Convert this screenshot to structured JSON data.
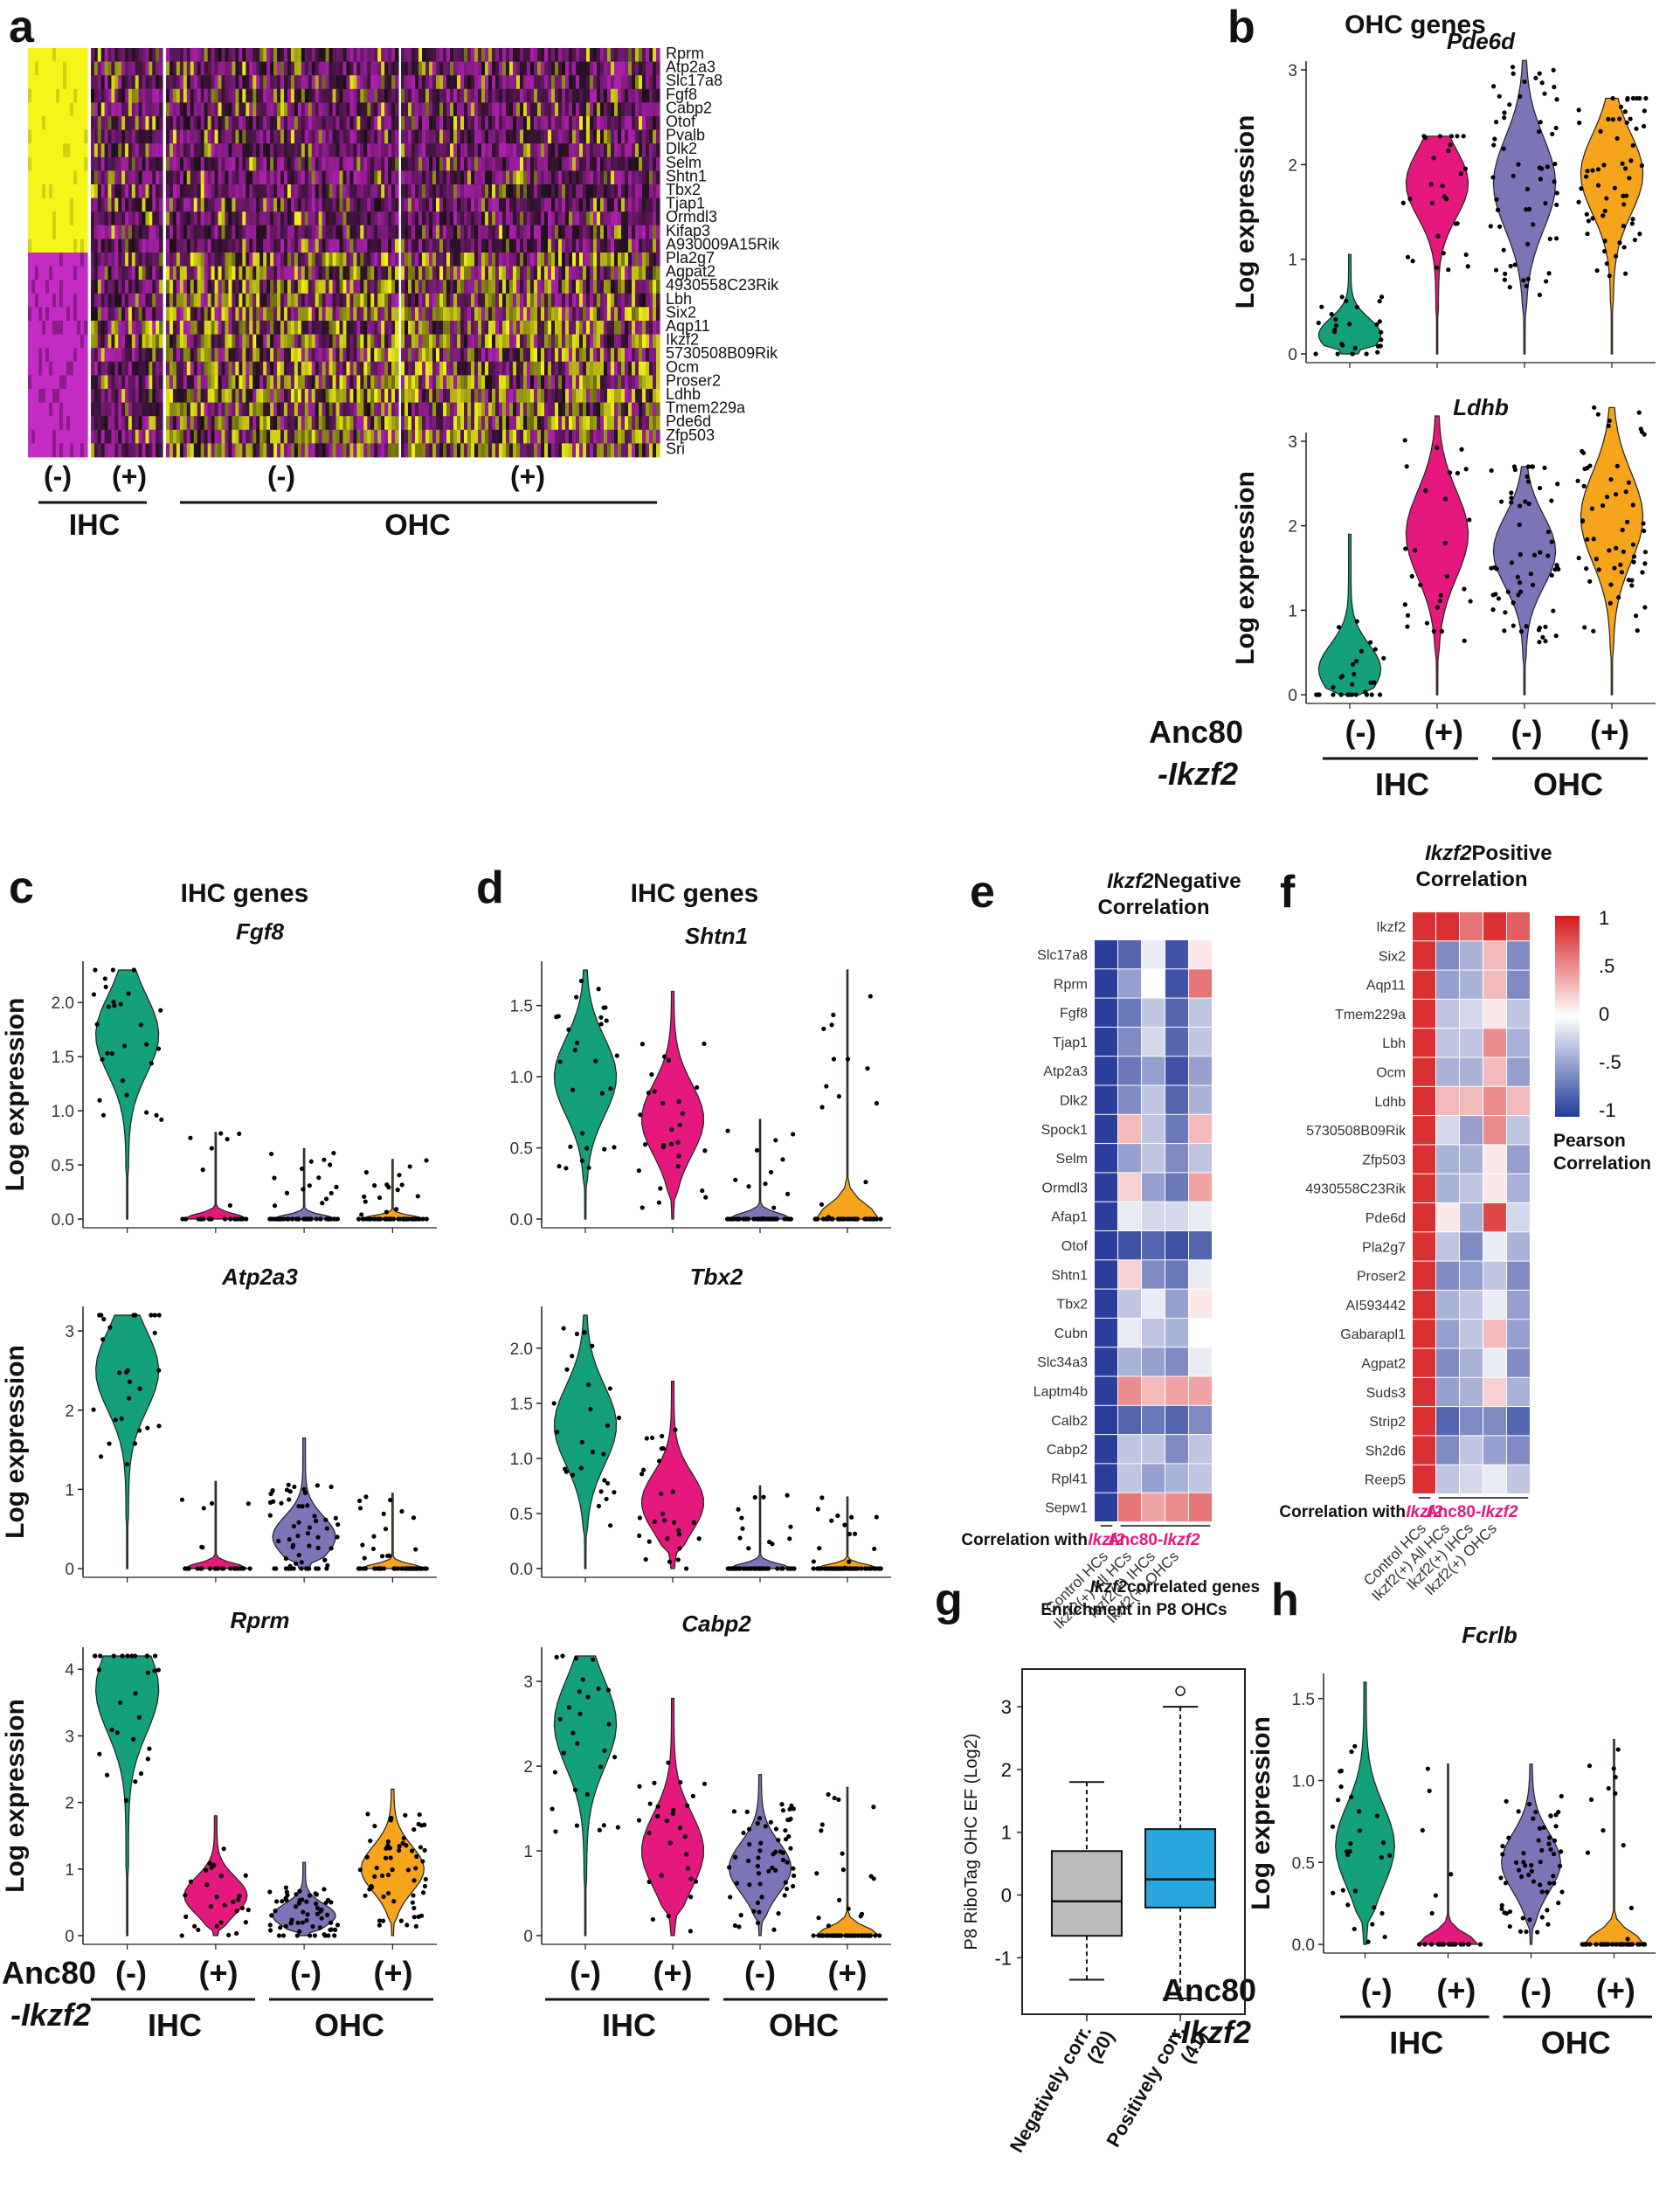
{
  "panel_letters": {
    "a": "a",
    "b": "b",
    "c": "c",
    "d": "d",
    "e": "e",
    "f": "f",
    "g": "g",
    "h": "h"
  },
  "colors": {
    "ihc_ctrl": "#14a07a",
    "ihc_ikzf2": "#e5197d",
    "ohc_ctrl": "#7b74b6",
    "ohc_ikzf2": "#f5a41c",
    "heat_low": "#c41fc4",
    "heat_high": "#f2f216",
    "box_neg": "#bbbbbb",
    "box_pos": "#2aa6df"
  },
  "common": {
    "ylabel": "Log expression",
    "anc80_line1": "Anc80",
    "anc80_line2": "-Ikzf2",
    "neg": "(-)",
    "pos": "(+)",
    "ihc": "IHC",
    "ohc": "OHC"
  },
  "heatmap": {
    "genes": [
      "Rprm",
      "Atp2a3",
      "Slc17a8",
      "Fgf8",
      "Cabp2",
      "Otof",
      "Pvalb",
      "Dlk2",
      "Selm",
      "Shtn1",
      "Tbx2",
      "Tjap1",
      "Ormdl3",
      "Kifap3",
      "A930009A15Rik",
      "Pla2g7",
      "Agpat2",
      "4930558C23Rik",
      "Lbh",
      "Six2",
      "Aqp11",
      "Ikzf2",
      "5730508B09Rik",
      "Ocm",
      "Proser2",
      "Ldhb",
      "Tmem229a",
      "Pde6d",
      "Zfp503",
      "Sri"
    ],
    "groups": [
      "(-)",
      "(+)",
      "(-)",
      "(+)"
    ],
    "group_labels": {
      "ihc": "IHC",
      "ohc": "OHC"
    }
  },
  "panel_b": {
    "title": "OHC genes",
    "genes": [
      {
        "name": "Pde6d",
        "ymax": 3,
        "ticks": [
          0,
          1,
          2,
          3
        ]
      },
      {
        "name": "Ldhb",
        "ymax": 3,
        "ticks": [
          0,
          1,
          2,
          3
        ]
      }
    ]
  },
  "panel_c": {
    "title": "IHC genes",
    "genes": [
      {
        "name": "Fgf8",
        "ticks": [
          "0.0",
          "0.5",
          "1.0",
          "1.5",
          "2.0"
        ]
      },
      {
        "name": "Atp2a3",
        "ticks": [
          "0",
          "1",
          "2",
          "3"
        ]
      },
      {
        "name": "Rprm",
        "ticks": [
          "0",
          "1",
          "2",
          "3",
          "4"
        ]
      }
    ]
  },
  "panel_d": {
    "title": "IHC genes",
    "genes": [
      {
        "name": "Shtn1",
        "ticks": [
          "0.0",
          "0.5",
          "1.0",
          "1.5"
        ]
      },
      {
        "name": "Tbx2",
        "ticks": [
          "0.0",
          "0.5",
          "1.0",
          "1.5",
          "2.0"
        ]
      },
      {
        "name": "Cabp2",
        "ticks": [
          "0",
          "1",
          "2",
          "3"
        ]
      }
    ]
  },
  "panel_e": {
    "title_italic": "Ikzf2",
    "title_rest": " Negative",
    "title_line2": "Correlation",
    "genes": [
      "Slc17a8",
      "Rprm",
      "Fgf8",
      "Tjap1",
      "Atp2a3",
      "Dlk2",
      "Spock1",
      "Selm",
      "Ormdl3",
      "Afap1",
      "Otof",
      "Shtn1",
      "Tbx2",
      "Cubn",
      "Slc34a3",
      "Laptm4b",
      "Calb2",
      "Cabp2",
      "Rpl41",
      "Sepw1"
    ],
    "values": [
      [
        -1,
        -0.8,
        -0.1,
        -0.9,
        0.1
      ],
      [
        -1,
        -0.5,
        0.0,
        -0.9,
        0.6
      ],
      [
        -1,
        -0.7,
        -0.3,
        -0.8,
        -0.3
      ],
      [
        -1,
        -0.6,
        -0.2,
        -0.8,
        -0.3
      ],
      [
        -1,
        -0.7,
        -0.5,
        -0.9,
        -0.5
      ],
      [
        -1,
        -0.6,
        -0.3,
        -0.8,
        -0.4
      ],
      [
        -1,
        0.3,
        -0.3,
        -0.7,
        0.3
      ],
      [
        -1,
        -0.5,
        -0.3,
        -0.6,
        -0.3
      ],
      [
        -1,
        0.2,
        -0.5,
        -0.7,
        0.4
      ],
      [
        -1,
        -0.1,
        -0.2,
        -0.2,
        -0.1
      ],
      [
        -1,
        -0.9,
        -0.8,
        -0.9,
        -0.8
      ],
      [
        -1,
        0.2,
        -0.6,
        -0.7,
        -0.1
      ],
      [
        -1,
        -0.3,
        -0.1,
        -0.5,
        0.1
      ],
      [
        -1,
        -0.1,
        -0.3,
        -0.4,
        0.0
      ],
      [
        -1,
        -0.4,
        -0.5,
        -0.6,
        -0.1
      ],
      [
        -1,
        0.5,
        0.3,
        0.4,
        0.4
      ],
      [
        -1,
        -0.8,
        -0.7,
        -0.8,
        -0.6
      ],
      [
        -1,
        -0.3,
        -0.3,
        -0.6,
        -0.3
      ],
      [
        -1,
        -0.3,
        -0.5,
        -0.4,
        -0.3
      ],
      [
        -1,
        0.6,
        0.4,
        0.5,
        0.6
      ]
    ],
    "xlabels": [
      "Control HCs",
      "Ikzf2(+) All HCs",
      "Ikzf2(+) IHCs",
      "Ikzf2(+) OHCs"
    ],
    "corr_prefix": "Correlation with",
    "corr_italic": "Ikzf2",
    "corr_suffix": "Anc80-",
    "corr_suffix_italic": "Ikzf2"
  },
  "panel_f": {
    "title_italic": "Ikzf2",
    "title_rest": " Positive",
    "title_line2": "Correlation",
    "genes": [
      "Ikzf2",
      "Six2",
      "Aqp11",
      "Tmem229a",
      "Lbh",
      "Ocm",
      "Ldhb",
      "5730508B09Rik",
      "Zfp503",
      "4930558C23Rik",
      "Pde6d",
      "Pla2g7",
      "Proser2",
      "AI593442",
      "Gabarapl1",
      "Agpat2",
      "Suds3",
      "Strip2",
      "Sh2d6",
      "Reep5"
    ],
    "values": [
      [
        0.9,
        0.9,
        0.6,
        0.9,
        0.7
      ],
      [
        0.9,
        -0.6,
        -0.4,
        0.3,
        -0.6
      ],
      [
        0.9,
        -0.5,
        -0.4,
        0.3,
        -0.6
      ],
      [
        0.9,
        -0.3,
        -0.2,
        0.1,
        -0.3
      ],
      [
        0.9,
        -0.3,
        -0.3,
        0.5,
        -0.4
      ],
      [
        0.9,
        -0.4,
        -0.4,
        0.3,
        -0.5
      ],
      [
        0.9,
        0.3,
        0.3,
        0.5,
        0.3
      ],
      [
        0.9,
        -0.2,
        -0.5,
        0.5,
        -0.3
      ],
      [
        0.9,
        -0.4,
        -0.4,
        0.1,
        -0.5
      ],
      [
        0.9,
        -0.4,
        -0.3,
        0.1,
        -0.4
      ],
      [
        0.9,
        0.1,
        -0.4,
        0.8,
        -0.2
      ],
      [
        0.9,
        -0.3,
        -0.6,
        -0.1,
        -0.4
      ],
      [
        0.9,
        -0.6,
        -0.5,
        -0.3,
        -0.6
      ],
      [
        0.9,
        -0.4,
        -0.3,
        -0.1,
        -0.5
      ],
      [
        0.9,
        -0.5,
        -0.3,
        0.3,
        -0.5
      ],
      [
        0.9,
        -0.6,
        -0.4,
        -0.1,
        -0.6
      ],
      [
        0.9,
        -0.5,
        -0.4,
        0.2,
        -0.4
      ],
      [
        0.9,
        -0.8,
        -0.6,
        -0.6,
        -0.8
      ],
      [
        0.9,
        -0.6,
        -0.3,
        -0.5,
        -0.6
      ],
      [
        0.9,
        -0.3,
        -0.2,
        -0.1,
        -0.3
      ]
    ],
    "legend_ticks": [
      "1",
      ".5",
      "0",
      "-.5",
      "-1"
    ],
    "legend_title1": "Pearson",
    "legend_title2": "Correlation"
  },
  "panel_g": {
    "title_italic": "Ikzf2",
    "title_rest": " correlated genes",
    "title_line2": "Enrichment in P8 OHCs",
    "ylabel": "P8 RiboTag OHC EF (Log2)",
    "yticks": [
      "-1",
      "0",
      "1",
      "2",
      "3"
    ],
    "cat1_line1": "Negatively corr.",
    "cat1_line2": "(20)",
    "cat2_line1": "Positively corr.",
    "cat2_line2": "(41)"
  },
  "panel_h": {
    "gene": "Fcrlb",
    "ticks": [
      "0.0",
      "0.5",
      "1.0",
      "1.5"
    ]
  },
  "chart_data": [
    {
      "type": "heatmap",
      "title": "",
      "rows": [
        "Rprm",
        "Atp2a3",
        "Slc17a8",
        "Fgf8",
        "Cabp2",
        "Otof",
        "Pvalb",
        "Dlk2",
        "Selm",
        "Shtn1",
        "Tbx2",
        "Tjap1",
        "Ormdl3",
        "Kifap3",
        "A930009A15Rik",
        "Pla2g7",
        "Agpat2",
        "4930558C23Rik",
        "Lbh",
        "Six2",
        "Aqp11",
        "Ikzf2",
        "5730508B09Rik",
        "Ocm",
        "Proser2",
        "Ldhb",
        "Tmem229a",
        "Pde6d",
        "Zfp503",
        "Sri"
      ],
      "columns": [
        "IHC (-)",
        "IHC (+)",
        "OHC (-)",
        "OHC (+)"
      ],
      "values": [
        [
          1,
          0,
          0,
          0
        ],
        [
          1,
          0,
          0,
          0
        ],
        [
          1,
          0,
          0,
          0
        ],
        [
          1,
          0,
          0,
          0
        ],
        [
          1,
          0,
          0,
          0
        ],
        [
          1,
          0,
          0,
          0
        ],
        [
          1,
          0,
          0,
          0
        ],
        [
          1,
          0,
          0,
          0
        ],
        [
          1,
          0,
          0,
          0
        ],
        [
          1,
          0,
          0,
          0
        ],
        [
          1,
          0,
          0,
          0
        ],
        [
          1,
          0,
          0,
          0
        ],
        [
          1,
          0,
          0,
          0
        ],
        [
          1,
          0,
          0,
          0
        ],
        [
          1,
          0,
          0,
          0
        ],
        [
          0,
          0,
          1,
          1
        ],
        [
          0,
          0,
          1,
          1
        ],
        [
          0,
          0,
          1,
          1
        ],
        [
          0,
          0,
          1,
          1
        ],
        [
          0,
          0,
          1,
          1
        ],
        [
          0,
          1,
          1,
          1
        ],
        [
          0,
          1,
          1,
          1
        ],
        [
          0,
          0,
          1,
          1
        ],
        [
          0,
          0,
          1,
          1
        ],
        [
          0,
          0,
          1,
          1
        ],
        [
          0,
          0,
          1,
          1
        ],
        [
          0,
          0,
          1,
          1
        ],
        [
          0,
          0,
          1,
          1
        ],
        [
          0,
          0,
          1,
          1
        ],
        [
          0,
          0,
          1,
          1
        ]
      ]
    },
    {
      "type": "violin",
      "title": "Pde6d",
      "ylabel": "Log expression",
      "ylim": [
        0,
        3
      ],
      "categories": [
        "IHC (-)",
        "IHC (+)",
        "OHC (-)",
        "OHC (+)"
      ],
      "medians": [
        0.2,
        1.8,
        1.8,
        1.9
      ],
      "max": [
        1.05,
        2.3,
        3.1,
        2.7
      ]
    },
    {
      "type": "violin",
      "title": "Ldhb",
      "ylabel": "Log expression",
      "ylim": [
        0,
        3
      ],
      "categories": [
        "IHC (-)",
        "IHC (+)",
        "OHC (-)",
        "OHC (+)"
      ],
      "medians": [
        0.3,
        1.9,
        1.7,
        2.1
      ],
      "max": [
        1.9,
        3.3,
        2.7,
        3.4
      ]
    },
    {
      "type": "violin",
      "title": "Fgf8",
      "ylabel": "Log expression",
      "ylim": [
        0,
        2.3
      ],
      "categories": [
        "IHC (-)",
        "IHC (+)",
        "OHC (-)",
        "OHC (+)"
      ],
      "medians": [
        1.7,
        0.0,
        0.0,
        0.0
      ],
      "max": [
        2.3,
        0.8,
        0.65,
        0.55
      ]
    },
    {
      "type": "violin",
      "title": "Atp2a3",
      "ylabel": "Log expression",
      "ylim": [
        0,
        3.2
      ],
      "categories": [
        "IHC (-)",
        "IHC (+)",
        "OHC (-)",
        "OHC (+)"
      ],
      "medians": [
        2.5,
        0.0,
        0.4,
        0.0
      ],
      "max": [
        3.2,
        1.1,
        1.65,
        0.95
      ]
    },
    {
      "type": "violin",
      "title": "Rprm",
      "ylabel": "Log expression",
      "ylim": [
        0,
        4.2
      ],
      "categories": [
        "IHC (-)",
        "IHC (+)",
        "OHC (-)",
        "OHC (+)"
      ],
      "medians": [
        3.7,
        0.6,
        0.3,
        1.0
      ],
      "max": [
        4.2,
        1.8,
        1.1,
        2.2
      ]
    },
    {
      "type": "violin",
      "title": "Shtn1",
      "ylabel": "Log expression",
      "ylim": [
        0,
        1.75
      ],
      "categories": [
        "IHC (-)",
        "IHC (+)",
        "OHC (-)",
        "OHC (+)"
      ],
      "medians": [
        1.0,
        0.7,
        0.0,
        0.0
      ],
      "max": [
        1.75,
        1.6,
        0.7,
        1.75
      ]
    },
    {
      "type": "violin",
      "title": "Tbx2",
      "ylabel": "Log expression",
      "ylim": [
        0,
        2.3
      ],
      "categories": [
        "IHC (-)",
        "IHC (+)",
        "OHC (-)",
        "OHC (+)"
      ],
      "medians": [
        1.3,
        0.6,
        0.0,
        0.0
      ],
      "max": [
        2.3,
        1.7,
        0.75,
        0.65
      ]
    },
    {
      "type": "violin",
      "title": "Cabp2",
      "ylabel": "Log expression",
      "ylim": [
        0,
        3.3
      ],
      "categories": [
        "IHC (-)",
        "IHC (+)",
        "OHC (-)",
        "OHC (+)"
      ],
      "medians": [
        2.5,
        1.0,
        0.8,
        0.0
      ],
      "max": [
        3.3,
        2.8,
        1.9,
        1.75
      ]
    },
    {
      "type": "heatmap",
      "title": "Ikzf2 Negative Correlation",
      "rows": [
        "Slc17a8",
        "Rprm",
        "Fgf8",
        "Tjap1",
        "Atp2a3",
        "Dlk2",
        "Spock1",
        "Selm",
        "Ormdl3",
        "Afap1",
        "Otof",
        "Shtn1",
        "Tbx2",
        "Cubn",
        "Slc34a3",
        "Laptm4b",
        "Calb2",
        "Cabp2",
        "Rpl41",
        "Sepw1"
      ],
      "columns": [
        "Ikzf2",
        "Control HCs",
        "Ikzf2(+) All HCs",
        "Ikzf2(+) IHCs",
        "Ikzf2(+) OHCs"
      ],
      "range": [
        -1,
        1
      ]
    },
    {
      "type": "heatmap",
      "title": "Ikzf2 Positive Correlation",
      "rows": [
        "Ikzf2",
        "Six2",
        "Aqp11",
        "Tmem229a",
        "Lbh",
        "Ocm",
        "Ldhb",
        "5730508B09Rik",
        "Zfp503",
        "4930558C23Rik",
        "Pde6d",
        "Pla2g7",
        "Proser2",
        "AI593442",
        "Gabarapl1",
        "Agpat2",
        "Suds3",
        "Strip2",
        "Sh2d6",
        "Reep5"
      ],
      "columns": [
        "Ikzf2",
        "Control HCs",
        "Ikzf2(+) All HCs",
        "Ikzf2(+) IHCs",
        "Ikzf2(+) OHCs"
      ],
      "range": [
        -1,
        1
      ]
    },
    {
      "type": "box",
      "title": "Ikzf2 correlated genes Enrichment in P8 OHCs",
      "ylabel": "P8 RiboTag OHC EF (Log2)",
      "ylim": [
        -1.9,
        3.6
      ],
      "categories": [
        "Negatively corr. (20)",
        "Positively corr. (41)"
      ],
      "boxes": [
        {
          "whisker_low": -1.35,
          "q1": -0.65,
          "median": -0.1,
          "q3": 0.7,
          "whisker_high": 1.8,
          "outliers": []
        },
        {
          "whisker_low": -1.65,
          "q1": -0.2,
          "median": 0.25,
          "q3": 1.05,
          "whisker_high": 3.0,
          "outliers": [
            3.25
          ]
        }
      ]
    },
    {
      "type": "violin",
      "title": "Fcrlb",
      "ylabel": "Log expression",
      "ylim": [
        0,
        1.6
      ],
      "categories": [
        "IHC (-)",
        "IHC (+)",
        "OHC (-)",
        "OHC (+)"
      ],
      "medians": [
        0.6,
        0.0,
        0.5,
        0.0
      ],
      "max": [
        1.6,
        1.1,
        1.1,
        1.25
      ]
    }
  ]
}
